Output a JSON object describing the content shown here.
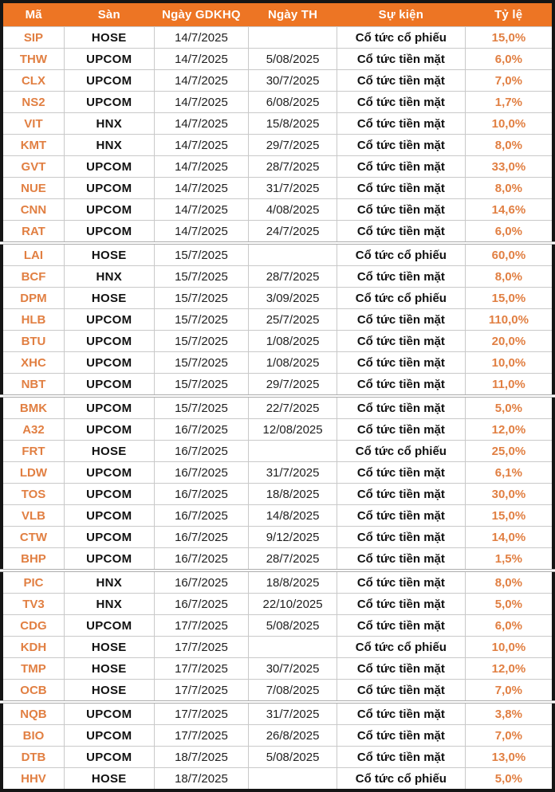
{
  "colors": {
    "header_bg": "#ED7524",
    "header_text": "#FFFFFF",
    "accent_text": "#E17F42",
    "grid_line": "#C9C9C9",
    "outer_border": "#151515",
    "row_bg": "#FFFFFF"
  },
  "chart_data": {
    "type": "table",
    "title": "",
    "columns": [
      "Mã",
      "Sàn",
      "Ngày GDKHQ",
      "Ngày TH",
      "Sự kiện",
      "Tỷ lệ"
    ],
    "column_keys": [
      "code",
      "exchange",
      "ex_date",
      "pay_date",
      "event",
      "ratio"
    ],
    "rows": [
      {
        "code": "SIP",
        "exchange": "HOSE",
        "ex_date": "14/7/2025",
        "pay_date": "",
        "event": "Cổ tức cổ phiếu",
        "ratio": "15,0%",
        "seam_before": false
      },
      {
        "code": "THW",
        "exchange": "UPCOM",
        "ex_date": "14/7/2025",
        "pay_date": "5/08/2025",
        "event": "Cổ tức tiền mặt",
        "ratio": "6,0%",
        "seam_before": false
      },
      {
        "code": "CLX",
        "exchange": "UPCOM",
        "ex_date": "14/7/2025",
        "pay_date": "30/7/2025",
        "event": "Cổ tức tiền mặt",
        "ratio": "7,0%",
        "seam_before": false
      },
      {
        "code": "NS2",
        "exchange": "UPCOM",
        "ex_date": "14/7/2025",
        "pay_date": "6/08/2025",
        "event": "Cổ tức tiền mặt",
        "ratio": "1,7%",
        "seam_before": false
      },
      {
        "code": "VIT",
        "exchange": "HNX",
        "ex_date": "14/7/2025",
        "pay_date": "15/8/2025",
        "event": "Cổ tức tiền mặt",
        "ratio": "10,0%",
        "seam_before": false
      },
      {
        "code": "KMT",
        "exchange": "HNX",
        "ex_date": "14/7/2025",
        "pay_date": "29/7/2025",
        "event": "Cổ tức tiền mặt",
        "ratio": "8,0%",
        "seam_before": false
      },
      {
        "code": "GVT",
        "exchange": "UPCOM",
        "ex_date": "14/7/2025",
        "pay_date": "28/7/2025",
        "event": "Cổ tức tiền mặt",
        "ratio": "33,0%",
        "seam_before": false
      },
      {
        "code": "NUE",
        "exchange": "UPCOM",
        "ex_date": "14/7/2025",
        "pay_date": "31/7/2025",
        "event": "Cổ tức tiền mặt",
        "ratio": "8,0%",
        "seam_before": false
      },
      {
        "code": "CNN",
        "exchange": "UPCOM",
        "ex_date": "14/7/2025",
        "pay_date": "4/08/2025",
        "event": "Cổ tức tiền mặt",
        "ratio": "14,6%",
        "seam_before": false
      },
      {
        "code": "RAT",
        "exchange": "UPCOM",
        "ex_date": "14/7/2025",
        "pay_date": "24/7/2025",
        "event": "Cổ tức tiền mặt",
        "ratio": "6,0%",
        "seam_before": false
      },
      {
        "code": "LAI",
        "exchange": "HOSE",
        "ex_date": "15/7/2025",
        "pay_date": "",
        "event": "Cổ tức cổ phiếu",
        "ratio": "60,0%",
        "seam_before": true
      },
      {
        "code": "BCF",
        "exchange": "HNX",
        "ex_date": "15/7/2025",
        "pay_date": "28/7/2025",
        "event": "Cổ tức tiền mặt",
        "ratio": "8,0%",
        "seam_before": false
      },
      {
        "code": "DPM",
        "exchange": "HOSE",
        "ex_date": "15/7/2025",
        "pay_date": "3/09/2025",
        "event": "Cổ tức cổ phiếu",
        "ratio": "15,0%",
        "seam_before": false
      },
      {
        "code": "HLB",
        "exchange": "UPCOM",
        "ex_date": "15/7/2025",
        "pay_date": "25/7/2025",
        "event": "Cổ tức tiền mặt",
        "ratio": "110,0%",
        "seam_before": false
      },
      {
        "code": "BTU",
        "exchange": "UPCOM",
        "ex_date": "15/7/2025",
        "pay_date": "1/08/2025",
        "event": "Cổ tức tiền mặt",
        "ratio": "20,0%",
        "seam_before": false
      },
      {
        "code": "XHC",
        "exchange": "UPCOM",
        "ex_date": "15/7/2025",
        "pay_date": "1/08/2025",
        "event": "Cổ tức tiền mặt",
        "ratio": "10,0%",
        "seam_before": false
      },
      {
        "code": "NBT",
        "exchange": "UPCOM",
        "ex_date": "15/7/2025",
        "pay_date": "29/7/2025",
        "event": "Cổ tức tiền mặt",
        "ratio": "11,0%",
        "seam_before": false
      },
      {
        "code": "BMK",
        "exchange": "UPCOM",
        "ex_date": "15/7/2025",
        "pay_date": "22/7/2025",
        "event": "Cổ tức tiền mặt",
        "ratio": "5,0%",
        "seam_before": true
      },
      {
        "code": "A32",
        "exchange": "UPCOM",
        "ex_date": "16/7/2025",
        "pay_date": "12/08/2025",
        "event": "Cổ tức tiền mặt",
        "ratio": "12,0%",
        "seam_before": false
      },
      {
        "code": "FRT",
        "exchange": "HOSE",
        "ex_date": "16/7/2025",
        "pay_date": "",
        "event": "Cổ tức cổ phiếu",
        "ratio": "25,0%",
        "seam_before": false
      },
      {
        "code": "LDW",
        "exchange": "UPCOM",
        "ex_date": "16/7/2025",
        "pay_date": "31/7/2025",
        "event": "Cổ tức tiền mặt",
        "ratio": "6,1%",
        "seam_before": false
      },
      {
        "code": "TOS",
        "exchange": "UPCOM",
        "ex_date": "16/7/2025",
        "pay_date": "18/8/2025",
        "event": "Cổ tức tiền mặt",
        "ratio": "30,0%",
        "seam_before": false
      },
      {
        "code": "VLB",
        "exchange": "UPCOM",
        "ex_date": "16/7/2025",
        "pay_date": "14/8/2025",
        "event": "Cổ tức tiền mặt",
        "ratio": "15,0%",
        "seam_before": false
      },
      {
        "code": "CTW",
        "exchange": "UPCOM",
        "ex_date": "16/7/2025",
        "pay_date": "9/12/2025",
        "event": "Cổ tức tiền mặt",
        "ratio": "14,0%",
        "seam_before": false
      },
      {
        "code": "BHP",
        "exchange": "UPCOM",
        "ex_date": "16/7/2025",
        "pay_date": "28/7/2025",
        "event": "Cổ tức tiền mặt",
        "ratio": "1,5%",
        "seam_before": false
      },
      {
        "code": "PIC",
        "exchange": "HNX",
        "ex_date": "16/7/2025",
        "pay_date": "18/8/2025",
        "event": "Cổ tức tiền mặt",
        "ratio": "8,0%",
        "seam_before": true
      },
      {
        "code": "TV3",
        "exchange": "HNX",
        "ex_date": "16/7/2025",
        "pay_date": "22/10/2025",
        "event": "Cổ tức tiền mặt",
        "ratio": "5,0%",
        "seam_before": false
      },
      {
        "code": "CDG",
        "exchange": "UPCOM",
        "ex_date": "17/7/2025",
        "pay_date": "5/08/2025",
        "event": "Cổ tức tiền mặt",
        "ratio": "6,0%",
        "seam_before": false
      },
      {
        "code": "KDH",
        "exchange": "HOSE",
        "ex_date": "17/7/2025",
        "pay_date": "",
        "event": "Cổ tức cổ phiếu",
        "ratio": "10,0%",
        "seam_before": false
      },
      {
        "code": "TMP",
        "exchange": "HOSE",
        "ex_date": "17/7/2025",
        "pay_date": "30/7/2025",
        "event": "Cổ tức tiền mặt",
        "ratio": "12,0%",
        "seam_before": false
      },
      {
        "code": "OCB",
        "exchange": "HOSE",
        "ex_date": "17/7/2025",
        "pay_date": "7/08/2025",
        "event": "Cổ tức tiền mặt",
        "ratio": "7,0%",
        "seam_before": false
      },
      {
        "code": "NQB",
        "exchange": "UPCOM",
        "ex_date": "17/7/2025",
        "pay_date": "31/7/2025",
        "event": "Cổ tức tiền mặt",
        "ratio": "3,8%",
        "seam_before": true
      },
      {
        "code": "BIO",
        "exchange": "UPCOM",
        "ex_date": "17/7/2025",
        "pay_date": "26/8/2025",
        "event": "Cổ tức tiền mặt",
        "ratio": "7,0%",
        "seam_before": false
      },
      {
        "code": "DTB",
        "exchange": "UPCOM",
        "ex_date": "18/7/2025",
        "pay_date": "5/08/2025",
        "event": "Cổ tức tiền mặt",
        "ratio": "13,0%",
        "seam_before": false
      },
      {
        "code": "HHV",
        "exchange": "HOSE",
        "ex_date": "18/7/2025",
        "pay_date": "",
        "event": "Cổ tức cổ phiếu",
        "ratio": "5,0%",
        "seam_before": false
      }
    ]
  }
}
